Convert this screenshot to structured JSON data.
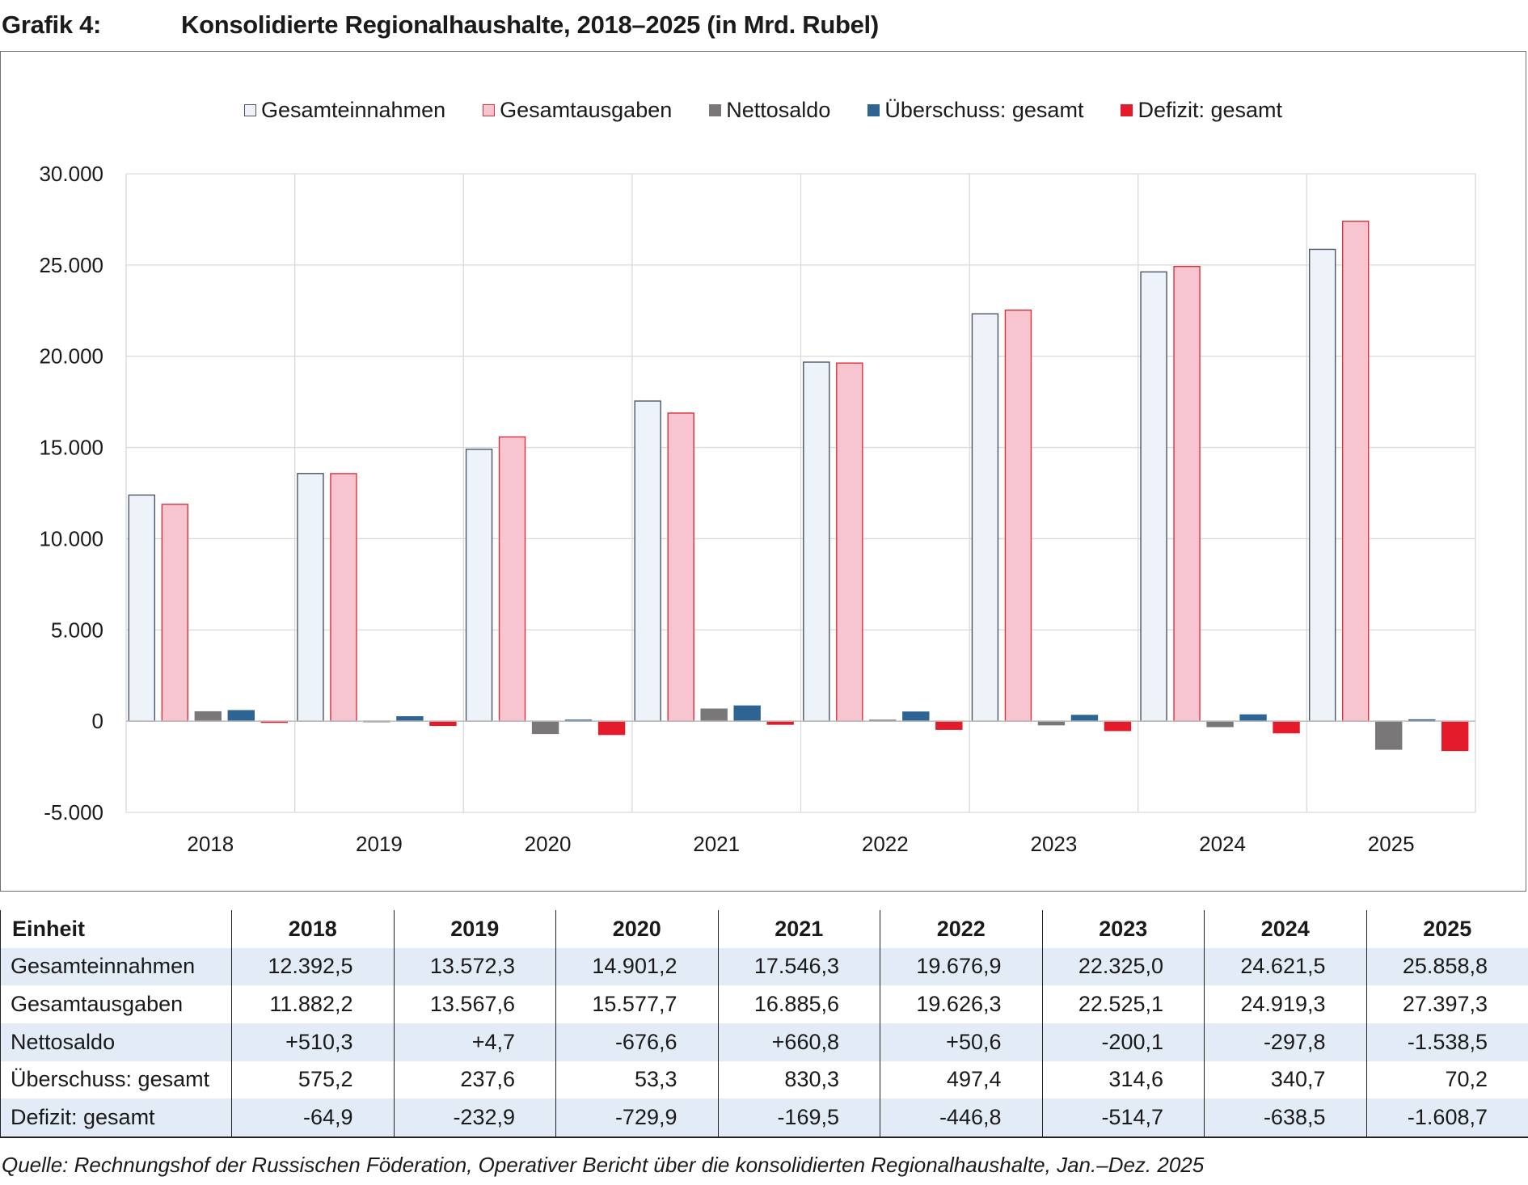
{
  "heading": {
    "number": "Grafik 4:",
    "title": "Konsolidierte Regionalhaushalte, 2018–2025 (in Mrd. Rubel)"
  },
  "chart_data": {
    "type": "bar",
    "categories": [
      "2018",
      "2019",
      "2020",
      "2021",
      "2022",
      "2023",
      "2024",
      "2025"
    ],
    "series": [
      {
        "name": "Gesamteinnahmen",
        "fill": "#eef3fa",
        "stroke": "#4a5568",
        "values": [
          12392.5,
          13572.3,
          14901.2,
          17546.3,
          19676.9,
          22325.0,
          24621.5,
          25858.8
        ]
      },
      {
        "name": "Gesamtausgaben",
        "fill": "#f7c5cf",
        "stroke": "#e0303c",
        "values": [
          11882.2,
          13567.6,
          15577.7,
          16885.6,
          19626.3,
          22525.1,
          24919.3,
          27397.3
        ]
      },
      {
        "name": "Nettosaldo",
        "fill": "#7a7778",
        "stroke": "#7a7778",
        "values": [
          510.3,
          4.7,
          -676.6,
          660.8,
          50.6,
          -200.1,
          -297.8,
          -1538.5
        ]
      },
      {
        "name": "Überschuss: gesamt",
        "fill": "#2e6494",
        "stroke": "#2e6494",
        "values": [
          575.2,
          237.6,
          53.3,
          830.3,
          497.4,
          314.6,
          340.7,
          70.2
        ]
      },
      {
        "name": "Defizit: gesamt",
        "fill": "#e31b2b",
        "stroke": "#e31b2b",
        "values": [
          -64.9,
          -232.9,
          -729.9,
          -169.5,
          -446.8,
          -514.7,
          -638.5,
          -1608.7
        ]
      }
    ],
    "ylim": [
      -5000,
      30000
    ],
    "y_ticks": [
      30000,
      25000,
      20000,
      15000,
      10000,
      5000,
      0,
      -5000
    ],
    "y_tick_labels": [
      "30.000",
      "25.000",
      "20.000",
      "15.000",
      "10.000",
      "5.000",
      "0",
      "-5.000"
    ],
    "grid": true,
    "legend_position": "top-center",
    "title": "",
    "xlabel": "",
    "ylabel": ""
  },
  "table": {
    "header": [
      "Einheit",
      "2018",
      "2019",
      "2020",
      "2021",
      "2022",
      "2023",
      "2024",
      "2025"
    ],
    "rows": [
      [
        "Gesamteinnahmen",
        "12.392,5",
        "13.572,3",
        "14.901,2",
        "17.546,3",
        "19.676,9",
        "22.325,0",
        "24.621,5",
        "25.858,8"
      ],
      [
        "Gesamtausgaben",
        "11.882,2",
        "13.567,6",
        "15.577,7",
        "16.885,6",
        "19.626,3",
        "22.525,1",
        "24.919,3",
        "27.397,3"
      ],
      [
        "Nettosaldo",
        "+510,3",
        "+4,7",
        "-676,6",
        "+660,8",
        "+50,6",
        "-200,1",
        "-297,8",
        "-1.538,5"
      ],
      [
        "Überschuss: gesamt",
        "575,2",
        "237,6",
        "53,3",
        "830,3",
        "497,4",
        "314,6",
        "340,7",
        "70,2"
      ],
      [
        "Defizit: gesamt",
        "-64,9",
        "-232,9",
        "-729,9",
        "-169,5",
        "-446,8",
        "-514,7",
        "-638,5",
        "-1.608,7"
      ]
    ]
  },
  "source": "Quelle: Rechnungshof der Russischen Föderation, Operativer Bericht über die konsolidierten Regionalhaushalte, Jan.–Dez. 2025"
}
